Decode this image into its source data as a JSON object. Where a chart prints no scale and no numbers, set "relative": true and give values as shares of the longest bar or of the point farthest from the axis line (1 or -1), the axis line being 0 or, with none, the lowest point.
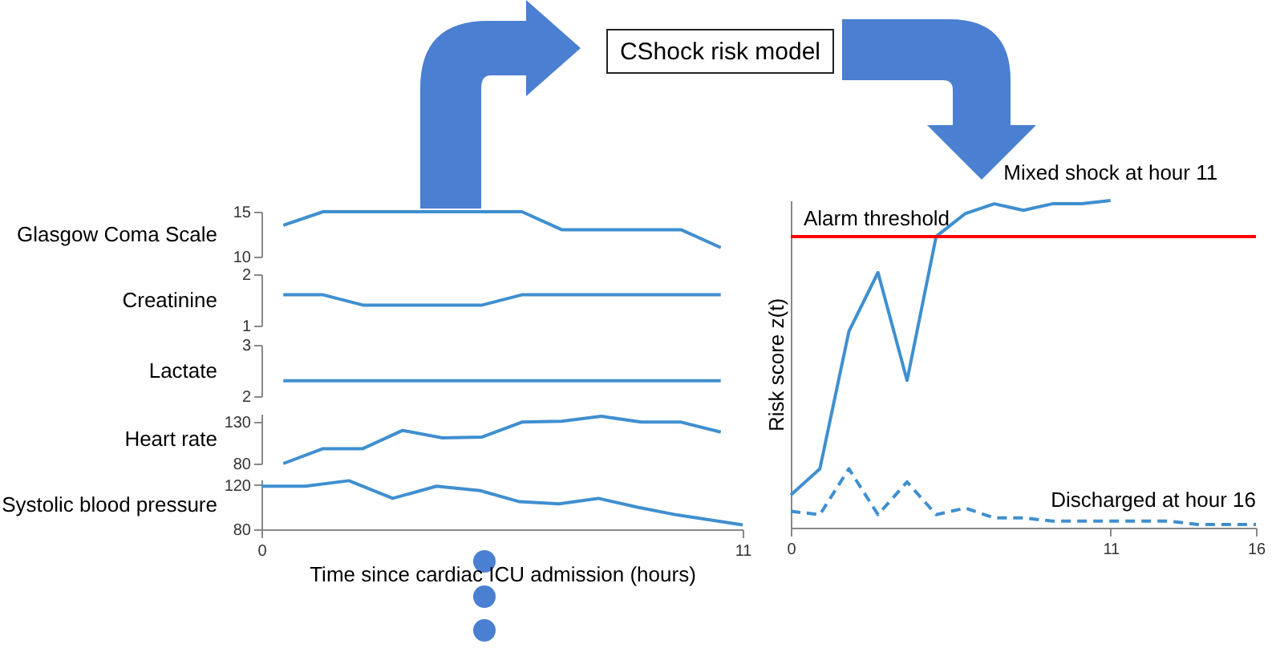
{
  "chart_data": [
    {
      "type": "line",
      "ylabel": "Glasgow Coma Scale",
      "ylim": [
        10,
        15
      ],
      "yticks": [
        10,
        15
      ],
      "tick_labels": "y",
      "categories": [
        null,
        null,
        null,
        null,
        null,
        null,
        null,
        null,
        null,
        null,
        null,
        null
      ],
      "series": [
        {
          "color": "#3f8fd0",
          "values": [
            13.5,
            15,
            15,
            15,
            15,
            15,
            15,
            13,
            13,
            13,
            13,
            11
          ]
        }
      ]
    },
    {
      "type": "line",
      "ylabel": "Creatinine",
      "ylim": [
        1,
        2
      ],
      "yticks": [
        1,
        2
      ],
      "tick_labels": "y",
      "categories": [
        null,
        null,
        null,
        null,
        null,
        null,
        null,
        null,
        null,
        null,
        null,
        null
      ],
      "series": [
        {
          "color": "#3f8fd0",
          "values": [
            1.6,
            1.6,
            1.4,
            1.4,
            1.4,
            1.4,
            1.6,
            1.6,
            1.6,
            1.6,
            1.6,
            1.6
          ]
        }
      ]
    },
    {
      "type": "line",
      "ylabel": "Lactate",
      "ylim": [
        2,
        3
      ],
      "yticks": [
        2,
        3
      ],
      "tick_labels": "y",
      "categories": [
        null,
        null,
        null,
        null,
        null,
        null,
        null,
        null,
        null,
        null,
        null,
        null
      ],
      "series": [
        {
          "color": "#3f8fd0",
          "values": [
            2.3,
            2.3,
            2.3,
            2.3,
            2.3,
            2.3,
            2.3,
            2.3,
            2.3,
            2.3,
            2.3,
            2.3
          ]
        }
      ]
    },
    {
      "type": "line",
      "ylabel": "Heart rate",
      "ylim": [
        80,
        140
      ],
      "yticks": [
        80,
        130
      ],
      "tick_labels": "y",
      "categories": [
        null,
        null,
        null,
        null,
        null,
        null,
        null,
        null,
        null,
        null,
        null,
        null
      ],
      "series": [
        {
          "color": "#3f8fd0",
          "values": [
            80,
            98,
            98,
            120,
            111,
            112,
            130,
            131,
            137,
            130,
            130,
            118
          ]
        }
      ]
    },
    {
      "type": "line",
      "ylabel": "Systolic blood pressure",
      "xlabel": "Time since cardiac ICU admission (hours)",
      "xlim": [
        0,
        11
      ],
      "xticks": [
        0,
        11
      ],
      "ylim": [
        80,
        125
      ],
      "yticks": [
        80,
        120
      ],
      "x": [
        0,
        1,
        2,
        3,
        4,
        5,
        5.9,
        6.8,
        7.7,
        8.6,
        9.5,
        11
      ],
      "series": [
        {
          "color": "#3f8fd0",
          "values": [
            119,
            119,
            124,
            108,
            119,
            115,
            105,
            103,
            108,
            100,
            93,
            84
          ]
        }
      ]
    },
    {
      "type": "line",
      "ylabel": "Risk score z(t)",
      "relative": true,
      "xlim": [
        0,
        16
      ],
      "xticks": [
        0,
        11,
        16
      ],
      "series": [
        {
          "color": "#3f8fd0",
          "line_style": "solid",
          "x": [
            0,
            1,
            2,
            3,
            4,
            5,
            6,
            7,
            8,
            9,
            10,
            11
          ],
          "values": [
            0.1,
            0.18,
            0.6,
            0.78,
            0.45,
            0.89,
            0.96,
            0.99,
            0.97,
            0.99,
            0.99,
            1
          ]
        },
        {
          "color": "#3f8fd0",
          "line_style": "dashed",
          "x": [
            0,
            1,
            2,
            3,
            4,
            5,
            6,
            7,
            8,
            9,
            10,
            11,
            12,
            13,
            14,
            15,
            16
          ],
          "values": [
            0.05,
            0.04,
            0.18,
            0.04,
            0.14,
            0.04,
            0.06,
            0.03,
            0.03,
            0.02,
            0.02,
            0.02,
            0.02,
            0.02,
            0.01,
            0.01,
            0.01
          ]
        }
      ],
      "ref_lines": [
        {
          "axis": "y",
          "value": 0.89,
          "label": "Alarm threshold",
          "color": "#ff0000"
        }
      ],
      "annotations": [
        {
          "text": "Mixed shock at hour 11",
          "x": 11,
          "y": 1
        },
        {
          "text": "Discharged at hour 16",
          "x": 16,
          "y": 0.01
        }
      ]
    },
    {
      "type": "other",
      "title": "CShock risk model"
    }
  ]
}
